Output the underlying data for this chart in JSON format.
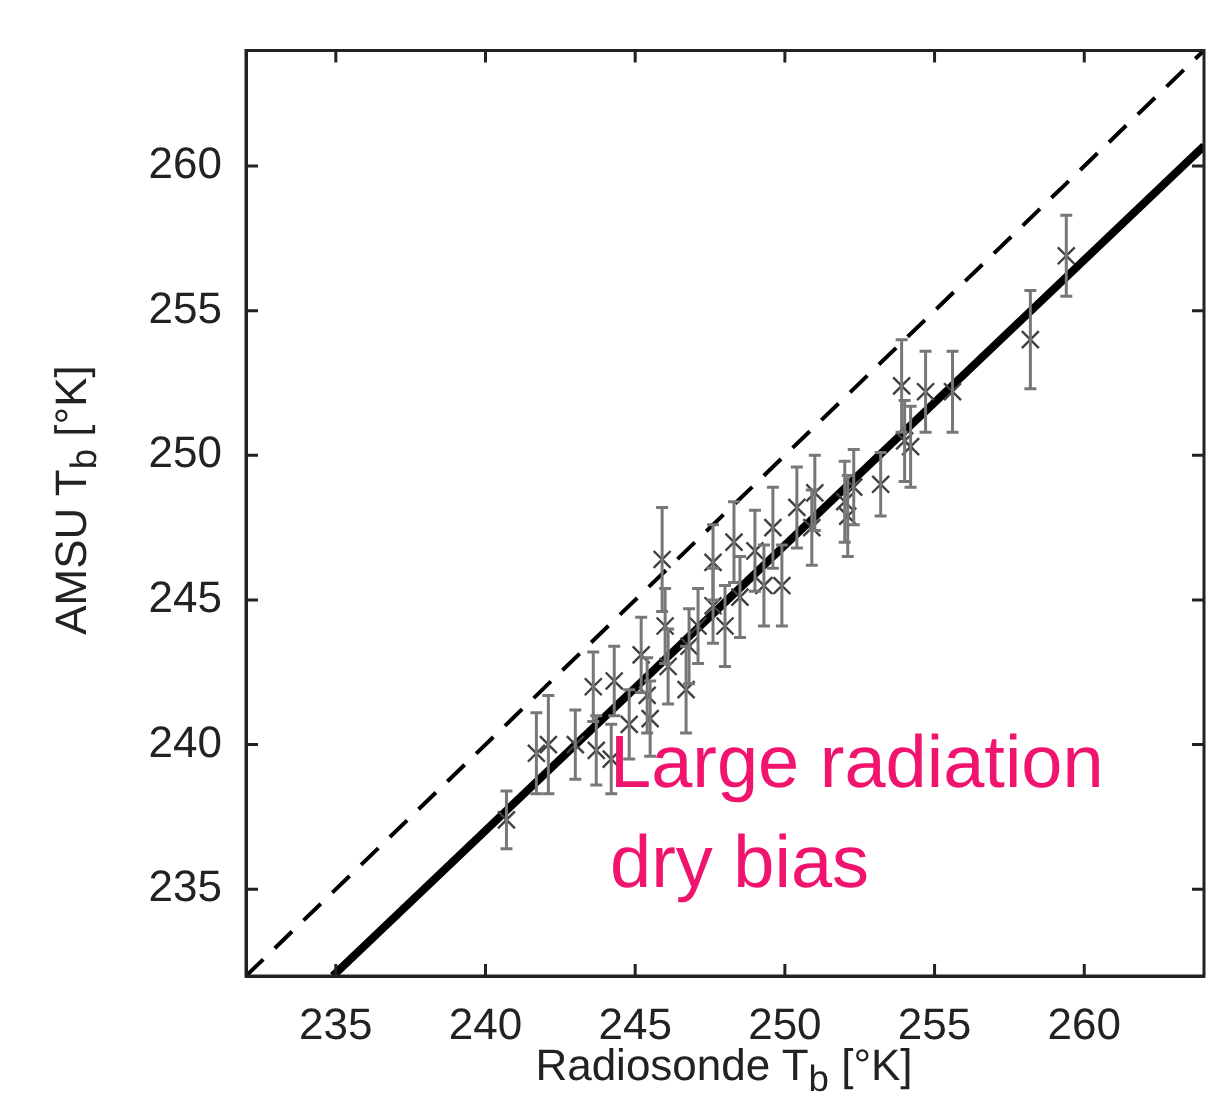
{
  "chart_data": {
    "type": "scatter",
    "xlabel": "Radiosonde T$_{b}$ [°K]",
    "ylabel": "AMSU T$_{b}$ [°K]",
    "xlim": [
      232,
      264
    ],
    "ylim": [
      232,
      264
    ],
    "xticks": [
      235,
      240,
      245,
      250,
      255,
      260
    ],
    "yticks": [
      235,
      240,
      245,
      250,
      255,
      260
    ],
    "grid": false,
    "legend": false,
    "series": [
      {
        "type": "scatter",
        "marker": "cross",
        "color": "#404040",
        "x": [
          240.7,
          241.7,
          242.1,
          243.0,
          243.6,
          243.7,
          244.2,
          244.3,
          244.8,
          245.2,
          245.4,
          245.5,
          245.9,
          246.0,
          246.1,
          246.7,
          246.8,
          247.1,
          247.6,
          247.6,
          248.0,
          248.3,
          248.5,
          249.0,
          249.3,
          249.6,
          249.9,
          250.4,
          250.9,
          251.0,
          252.0,
          252.1,
          252.3,
          253.2,
          253.9,
          254.0,
          254.2,
          254.7,
          255.6,
          258.2,
          259.4
        ],
        "values": [
          237.4,
          239.7,
          240.0,
          240.0,
          242.0,
          239.8,
          239.5,
          242.2,
          240.7,
          243.1,
          241.7,
          240.9,
          246.4,
          244.1,
          242.7,
          241.9,
          243.4,
          244.1,
          246.3,
          244.8,
          244.1,
          247.0,
          245.1,
          246.7,
          245.5,
          247.5,
          245.5,
          248.2,
          247.5,
          248.7,
          248.4,
          247.9,
          248.9,
          249.0,
          252.4,
          250.5,
          250.3,
          252.2,
          252.2,
          254.0,
          256.9
        ],
        "errors": [
          1.0,
          1.4,
          1.7,
          1.2,
          1.2,
          1.2,
          1.2,
          1.2,
          1.2,
          1.3,
          1.3,
          1.3,
          1.8,
          1.3,
          1.3,
          1.5,
          1.3,
          1.3,
          1.3,
          1.3,
          1.4,
          1.4,
          1.4,
          1.4,
          1.4,
          1.4,
          1.4,
          1.4,
          1.3,
          1.3,
          1.4,
          1.4,
          1.3,
          1.1,
          1.6,
          1.4,
          1.4,
          1.4,
          1.4,
          1.7,
          1.4
        ]
      },
      {
        "type": "line",
        "color": "#000000",
        "line_style": "dashed",
        "x": [
          232,
          264
        ],
        "values": [
          232,
          264
        ]
      },
      {
        "type": "line",
        "color": "#000000",
        "line_style": "solid",
        "x": [
          234.9,
          264
        ],
        "values": [
          232,
          260.7
        ]
      }
    ],
    "annotations": [
      "Large radiation dry bias"
    ]
  }
}
